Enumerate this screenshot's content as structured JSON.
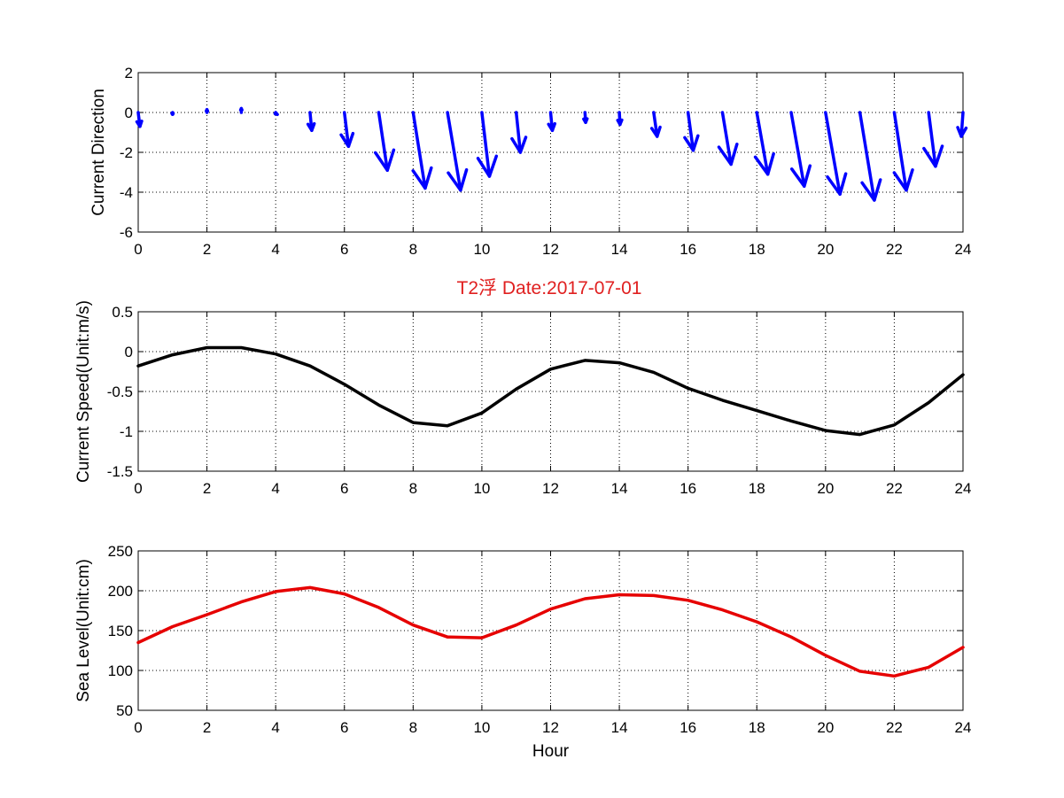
{
  "figure": {
    "title": "T2浮    Date:2017-07-01",
    "title_color": "#e02020"
  },
  "chart_data": [
    {
      "type": "quiver",
      "ylabel": "Current Direction",
      "xlabel": "",
      "xlim": [
        0,
        24
      ],
      "ylim": [
        -6,
        2
      ],
      "xticks": [
        "0",
        "2",
        "4",
        "6",
        "8",
        "10",
        "12",
        "14",
        "16",
        "18",
        "20",
        "22",
        "24"
      ],
      "yticks": [
        "2",
        "0",
        "-2",
        "-4",
        "-6"
      ],
      "grid": true,
      "color": "#0000ff",
      "series": [
        {
          "x": [
            0,
            1,
            2,
            3,
            4,
            5,
            6,
            7,
            8,
            9,
            10,
            11,
            12,
            13,
            14,
            15,
            16,
            17,
            18,
            19,
            20,
            21,
            22,
            23,
            24
          ],
          "u": [
            0.05,
            0,
            0,
            0,
            0.05,
            0.05,
            0.12,
            0.25,
            0.35,
            0.38,
            0.22,
            0.12,
            0.05,
            0.02,
            0.02,
            0.1,
            0.15,
            0.25,
            0.32,
            0.38,
            0.42,
            0.42,
            0.35,
            0.2,
            -0.05
          ],
          "v": [
            -0.7,
            -0.1,
            0.15,
            0.2,
            -0.1,
            -0.9,
            -1.7,
            -2.9,
            -3.8,
            -3.9,
            -3.2,
            -2.0,
            -0.9,
            -0.5,
            -0.6,
            -1.2,
            -1.9,
            -2.6,
            -3.1,
            -3.7,
            -4.1,
            -4.4,
            -3.9,
            -2.7,
            -1.2
          ]
        }
      ]
    },
    {
      "type": "line",
      "ylabel": "Current Speed(Unit:m/s)",
      "xlabel": "",
      "xlim": [
        0,
        24
      ],
      "ylim": [
        -1.5,
        0.5
      ],
      "xticks": [
        "0",
        "2",
        "4",
        "6",
        "8",
        "10",
        "12",
        "14",
        "16",
        "18",
        "20",
        "22",
        "24"
      ],
      "yticks": [
        "0.5",
        "0",
        "-0.5",
        "-1",
        "-1.5"
      ],
      "grid": true,
      "color": "#000000",
      "series": [
        {
          "x": [
            0,
            1,
            2,
            3,
            4,
            5,
            6,
            7,
            8,
            9,
            10,
            11,
            12,
            13,
            14,
            15,
            16,
            17,
            18,
            19,
            20,
            21,
            22,
            23,
            24
          ],
          "values": [
            -0.18,
            -0.04,
            0.05,
            0.05,
            -0.03,
            -0.18,
            -0.41,
            -0.67,
            -0.89,
            -0.93,
            -0.77,
            -0.47,
            -0.22,
            -0.11,
            -0.14,
            -0.26,
            -0.46,
            -0.61,
            -0.74,
            -0.87,
            -0.99,
            -1.04,
            -0.92,
            -0.64,
            -0.29
          ]
        }
      ]
    },
    {
      "type": "line",
      "ylabel": "Sea Level(Unit:cm)",
      "xlabel": "Hour",
      "xlim": [
        0,
        24
      ],
      "ylim": [
        50,
        250
      ],
      "xticks": [
        "0",
        "2",
        "4",
        "6",
        "8",
        "10",
        "12",
        "14",
        "16",
        "18",
        "20",
        "22",
        "24"
      ],
      "yticks": [
        "250",
        "200",
        "150",
        "100",
        "50"
      ],
      "grid": true,
      "color": "#e60000",
      "series": [
        {
          "x": [
            0,
            1,
            2,
            3,
            4,
            5,
            6,
            7,
            8,
            9,
            10,
            11,
            12,
            13,
            14,
            15,
            16,
            17,
            18,
            19,
            20,
            21,
            22,
            23,
            24
          ],
          "values": [
            135,
            155,
            170,
            186,
            199,
            204,
            196,
            179,
            157,
            142,
            141,
            157,
            177,
            190,
            195,
            194,
            188,
            176,
            161,
            142,
            119,
            99,
            93,
            104,
            129
          ]
        }
      ]
    }
  ]
}
